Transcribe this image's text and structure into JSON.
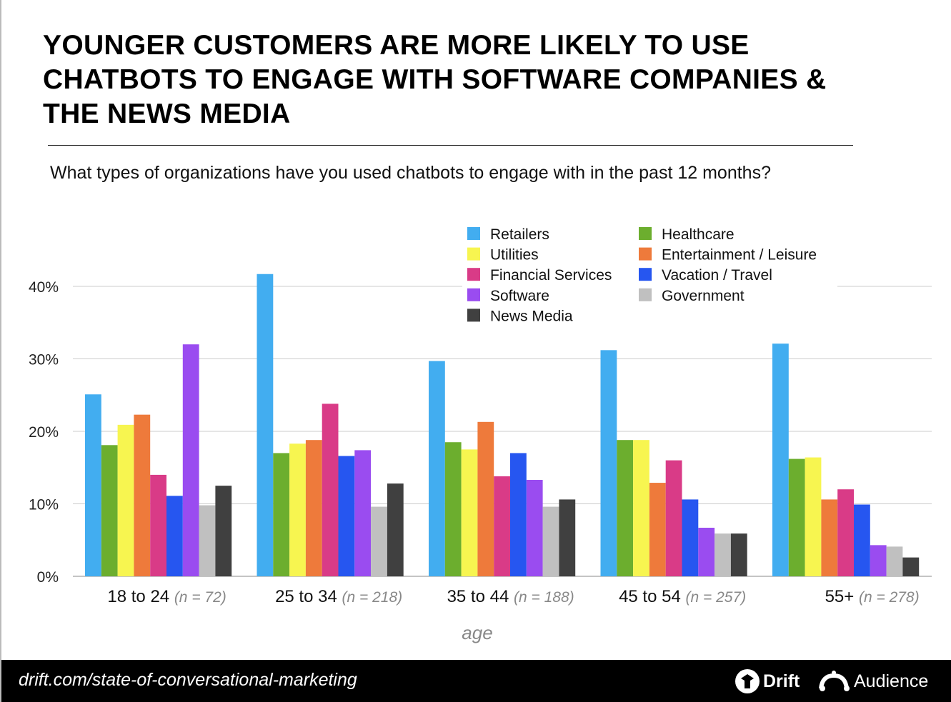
{
  "title": "YOUNGER CUSTOMERS ARE MORE LIKELY TO USE CHATBOTS TO ENGAGE WITH SOFTWARE COMPANIES & THE NEWS MEDIA",
  "subtitle": "What types of organizations have you used chatbots to engage with in the past 12 months?",
  "footer": {
    "url": "drift.com/state-of-conversational-marketing",
    "logos": [
      "Drift",
      "Audience"
    ]
  },
  "chart_data": {
    "type": "bar",
    "title": "",
    "xlabel": "age",
    "ylabel": "",
    "ylim": [
      0,
      40
    ],
    "yticks": [
      "0%",
      "10%",
      "20%",
      "30%",
      "40%"
    ],
    "grid": true,
    "legend_placement": "top-right",
    "categories": [
      "18 to 24",
      "25 to 34",
      "35 to 44",
      "45 to 54",
      "55+"
    ],
    "category_notes": [
      "(n = 72)",
      "(n = 218)",
      "(n = 188)",
      "(n = 257)",
      "(n = 278)"
    ],
    "series": [
      {
        "name": "Retailers",
        "color": "#42adf0",
        "values": [
          25.1,
          41.7,
          29.7,
          31.2,
          32.1
        ]
      },
      {
        "name": "Healthcare",
        "color": "#6cae2e",
        "values": [
          18.1,
          17.0,
          18.5,
          18.8,
          16.2
        ]
      },
      {
        "name": "Utilities",
        "color": "#f7f550",
        "values": [
          20.9,
          18.3,
          17.5,
          18.8,
          16.4
        ]
      },
      {
        "name": "Entertainment / Leisure",
        "color": "#ee7a3b",
        "values": [
          22.3,
          18.8,
          21.3,
          12.9,
          10.6
        ]
      },
      {
        "name": "Financial Services",
        "color": "#d93b87",
        "values": [
          14.0,
          23.8,
          13.8,
          16.0,
          12.0
        ]
      },
      {
        "name": "Vacation / Travel",
        "color": "#2656f0",
        "values": [
          11.1,
          16.6,
          17.0,
          10.6,
          9.9
        ]
      },
      {
        "name": "Software",
        "color": "#9a4cf0",
        "values": [
          32.0,
          17.4,
          13.3,
          6.7,
          4.3
        ]
      },
      {
        "name": "Government",
        "color": "#c0c0c0",
        "values": [
          9.8,
          9.6,
          9.6,
          5.9,
          4.1
        ]
      },
      {
        "name": "News Media",
        "color": "#404040",
        "values": [
          12.5,
          12.8,
          10.6,
          5.9,
          2.6
        ]
      }
    ],
    "legend_order": [
      "Retailers",
      "Utilities",
      "Financial Services",
      "Software",
      "News Media",
      "Healthcare",
      "Entertainment / Leisure",
      "Vacation / Travel",
      "Government"
    ]
  }
}
